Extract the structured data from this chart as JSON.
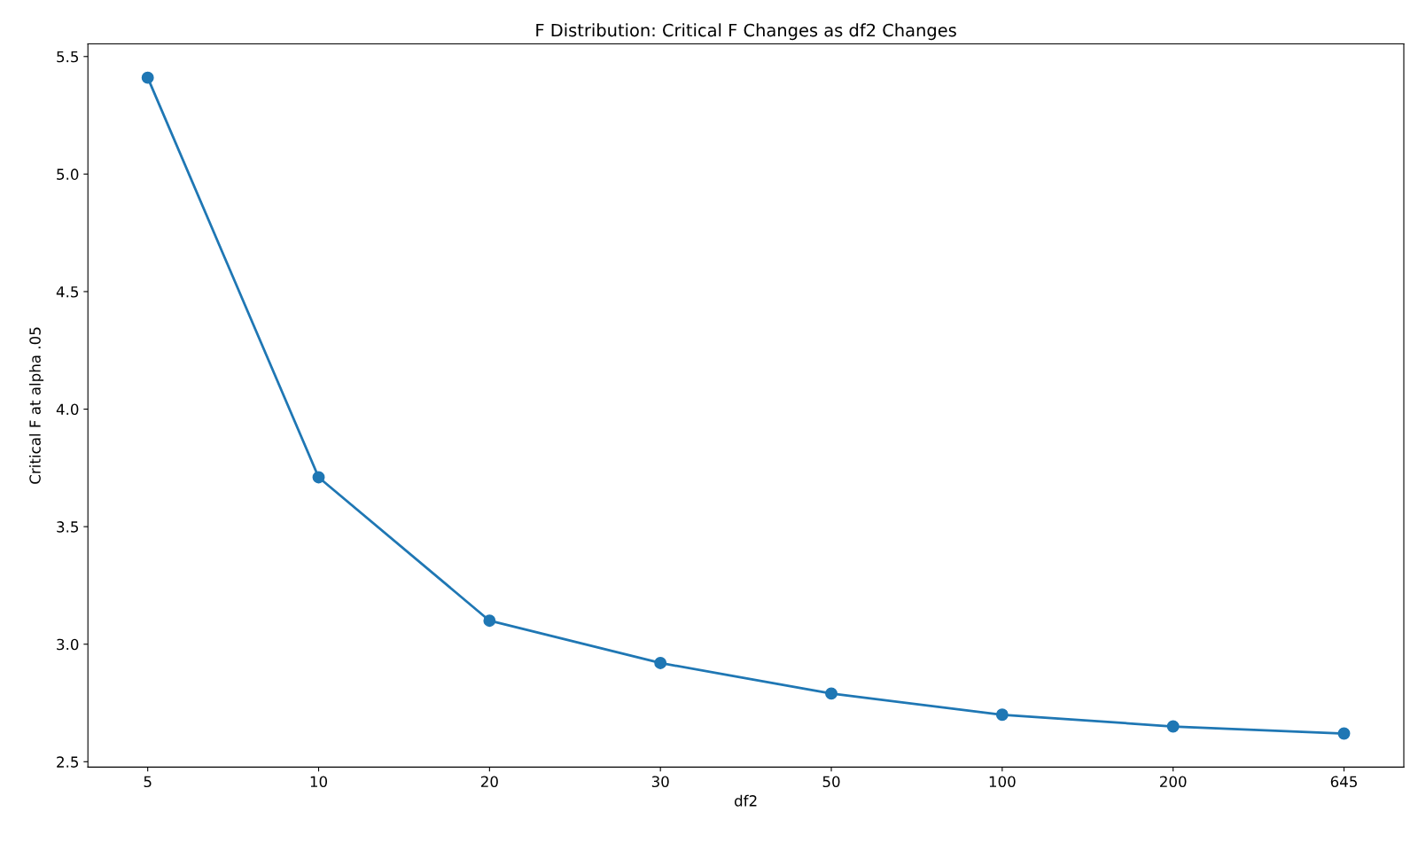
{
  "chart_data": {
    "type": "line",
    "title": "F Distribution: Critical F Changes as df2 Changes",
    "xlabel": "df2",
    "ylabel": "Critical F at alpha .05",
    "categories": [
      "5",
      "10",
      "20",
      "30",
      "50",
      "100",
      "200",
      "645"
    ],
    "series": [
      {
        "color": "#1f77b4",
        "values": [
          5.41,
          3.71,
          3.1,
          2.92,
          2.79,
          2.7,
          2.65,
          2.62
        ]
      }
    ],
    "ylim": [
      2.477,
      5.554
    ],
    "yticks": [
      {
        "value": 2.5,
        "label": "2.5"
      },
      {
        "value": 3.0,
        "label": "3.0"
      },
      {
        "value": 3.5,
        "label": "3.5"
      },
      {
        "value": 4.0,
        "label": "4.0"
      },
      {
        "value": 4.5,
        "label": "4.5"
      },
      {
        "value": 5.0,
        "label": "5.0"
      },
      {
        "value": 5.5,
        "label": "5.5"
      }
    ],
    "marker": "circle",
    "line_style": "solid"
  }
}
